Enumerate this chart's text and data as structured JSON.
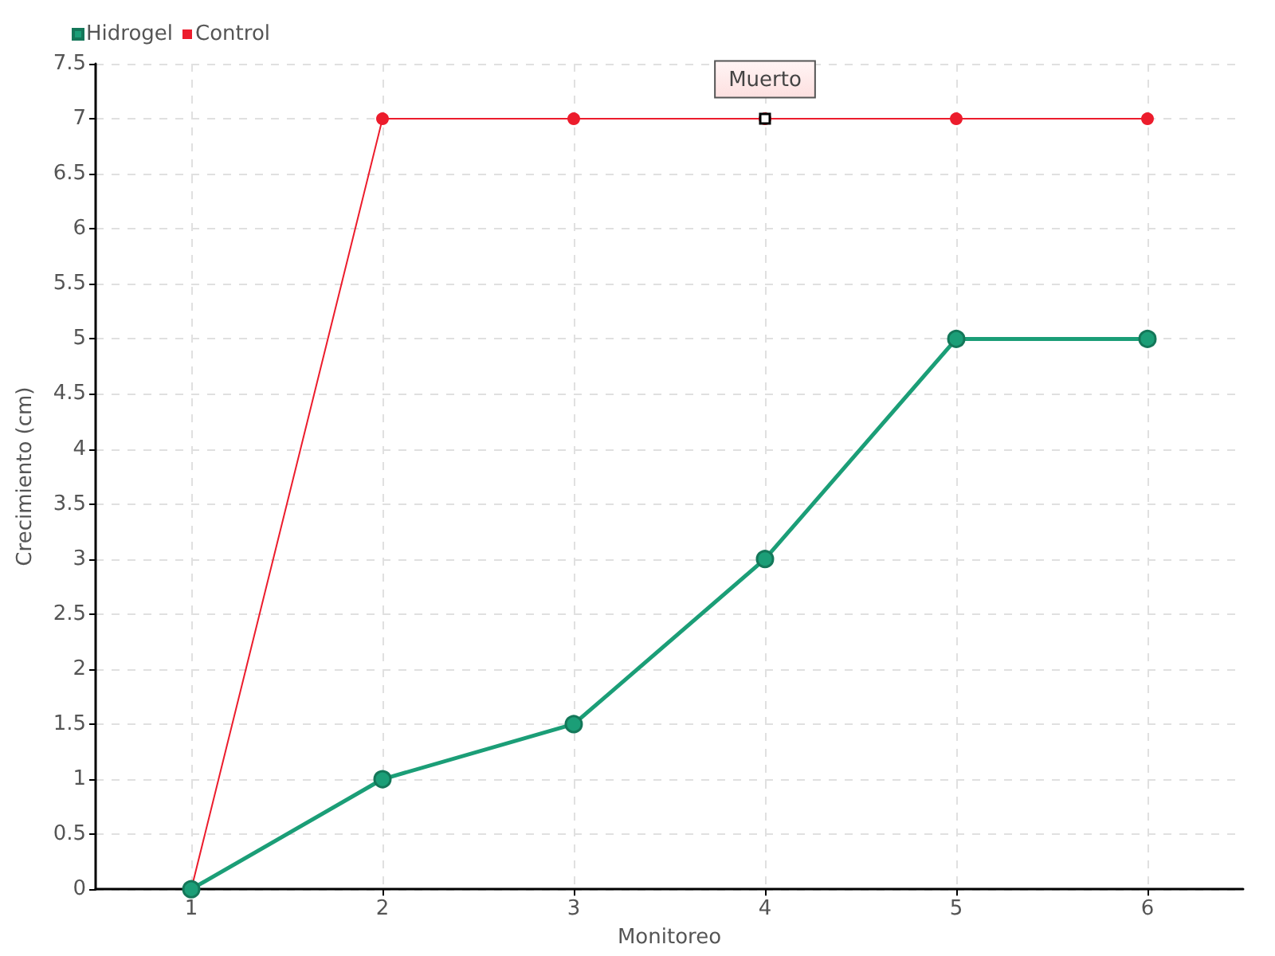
{
  "chart_data": {
    "type": "line",
    "xlabel": "Monitoreo",
    "ylabel": "Crecimiento (cm)",
    "x": [
      1,
      2,
      3,
      4,
      5,
      6
    ],
    "series": [
      {
        "name": "Hidrogel",
        "color": "#1b9e77",
        "values": [
          0,
          1,
          1.5,
          3,
          5,
          5
        ]
      },
      {
        "name": "Control",
        "color": "#ec1c2c",
        "values": [
          0,
          7,
          7,
          7,
          7,
          7
        ]
      }
    ],
    "xlim": [
      0.5,
      6.5
    ],
    "xticks": [
      1,
      2,
      3,
      4,
      5,
      6
    ],
    "ylim": [
      0,
      7.5
    ],
    "yticks": [
      0,
      0.5,
      1,
      1.5,
      2,
      2.5,
      3,
      3.5,
      4,
      4.5,
      5,
      5.5,
      6,
      6.5,
      7,
      7.5
    ],
    "annotations": [
      {
        "text": "Muerto",
        "x": 4,
        "y": 7
      }
    ],
    "grid": true,
    "legend": "top left",
    "marker": "circle",
    "line_style": "solid"
  }
}
